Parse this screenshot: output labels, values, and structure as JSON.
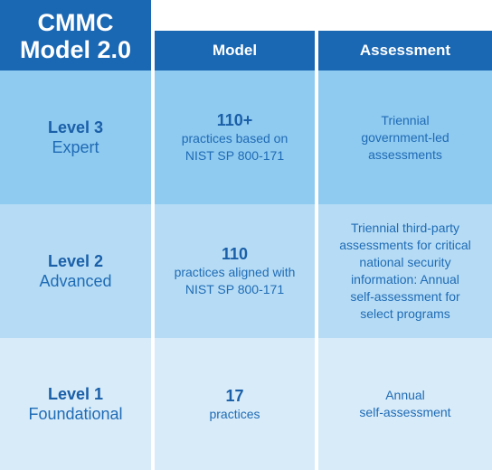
{
  "title": {
    "line1": "CMMC",
    "line2": "Model 2.0"
  },
  "columns": {
    "model": "Model",
    "assessment": "Assessment"
  },
  "rows": [
    {
      "level": "Level 3",
      "name": "Expert",
      "practice_count": "110+",
      "practice_desc_1": "practices based on",
      "practice_desc_2": "NIST SP 800-171",
      "assessment_lines": [
        "Triennial",
        "government-led",
        "assessments"
      ]
    },
    {
      "level": "Level 2",
      "name": "Advanced",
      "practice_count": "110",
      "practice_desc_1": "practices aligned with",
      "practice_desc_2": "NIST SP 800-171",
      "assessment_lines": [
        "Triennial third-party",
        "assessments for critical",
        "national security",
        "information: Annual",
        "self-assessment for",
        "select programs"
      ]
    },
    {
      "level": "Level 1",
      "name": "Foundational",
      "practice_count": "17",
      "practice_desc_1": "practices",
      "practice_desc_2": "",
      "assessment_lines": [
        "Annual",
        "self-assessment"
      ]
    }
  ],
  "colors": {
    "header": "#1a67b3",
    "level3_bg": "#8fcaf0",
    "level2_bg": "#b6dcf5",
    "level1_bg": "#d7ebf9",
    "text": "#1a5fa8"
  }
}
